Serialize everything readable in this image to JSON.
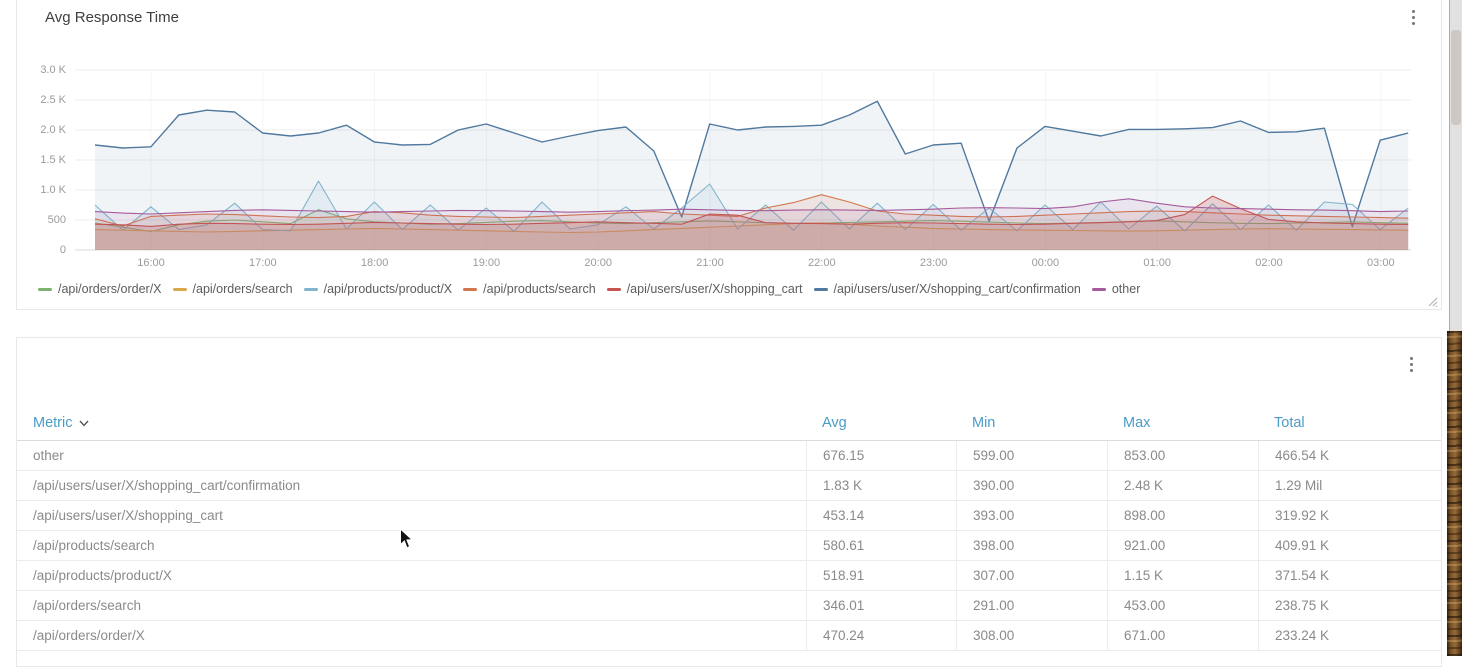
{
  "panels": {
    "chart_panel": {
      "title": "Avg Response Time"
    },
    "table_panel": {
      "title": ""
    }
  },
  "icons": [
    "kebab-menu-icon",
    "sort-chevron-icon",
    "resize-handle-icon",
    "mouse-cursor-icon"
  ],
  "colors": {
    "table_header": "#4a9bc6",
    "grid": "#ececec",
    "axis_text": "#9b9b9b"
  },
  "chart_data": {
    "type": "line",
    "title": "Avg Response Time",
    "x_start": "15:30",
    "x_step_minutes": 15,
    "x_tick_labels": [
      "16:00",
      "17:00",
      "18:00",
      "19:00",
      "20:00",
      "21:00",
      "22:00",
      "23:00",
      "00:00",
      "01:00",
      "02:00",
      "03:00"
    ],
    "ylim": [
      0,
      3000
    ],
    "y_tick_labels": [
      "0",
      "500",
      "1.0 K",
      "1.5 K",
      "2.0 K",
      "2.5 K",
      "3.0 K"
    ],
    "grid": true,
    "legend_position": "bottom",
    "draw_order": [
      5,
      0,
      1,
      2,
      3,
      4,
      6
    ],
    "series": [
      {
        "name": "/api/orders/order/X",
        "color": "#7eb26d",
        "fill_opacity": 0.1,
        "width": 1.1,
        "values": [
          450,
          380,
          308,
          420,
          480,
          500,
          470,
          440,
          671,
          520,
          470,
          450,
          430,
          440,
          460,
          480,
          490,
          470,
          450,
          440,
          455,
          470,
          485,
          470,
          455,
          445,
          450,
          460,
          470,
          480,
          490,
          480,
          465,
          450,
          440,
          450,
          460,
          475,
          485,
          470,
          455,
          445,
          440,
          450,
          460,
          470,
          455,
          445
        ]
      },
      {
        "name": "/api/orders/search",
        "color": "#d9a84e",
        "fill_opacity": 0.1,
        "width": 1.1,
        "values": [
          340,
          330,
          320,
          310,
          300,
          310,
          320,
          330,
          340,
          350,
          360,
          350,
          340,
          330,
          320,
          310,
          300,
          291,
          300,
          320,
          340,
          360,
          380,
          400,
          420,
          440,
          453,
          430,
          400,
          380,
          360,
          350,
          340,
          335,
          330,
          325,
          320,
          315,
          320,
          330,
          340,
          350,
          355,
          350,
          345,
          340,
          335,
          330
        ]
      },
      {
        "name": "/api/products/product/X",
        "color": "#82b5cb",
        "fill_opacity": 0.12,
        "width": 1.1,
        "values": [
          750,
          330,
          720,
          340,
          420,
          780,
          340,
          320,
          1150,
          350,
          800,
          340,
          750,
          330,
          700,
          310,
          800,
          350,
          420,
          720,
          350,
          700,
          1100,
          350,
          750,
          330,
          800,
          350,
          780,
          340,
          760,
          330,
          700,
          320,
          750,
          340,
          800,
          350,
          730,
          320,
          770,
          340,
          750,
          330,
          800,
          760,
          340,
          700
        ]
      },
      {
        "name": "/api/products/search",
        "color": "#d2764d",
        "fill_opacity": 0.12,
        "width": 1.1,
        "values": [
          520,
          400,
          560,
          580,
          600,
          590,
          570,
          550,
          540,
          560,
          640,
          620,
          580,
          560,
          550,
          540,
          560,
          580,
          600,
          620,
          640,
          600,
          580,
          560,
          700,
          790,
          921,
          800,
          650,
          600,
          580,
          560,
          550,
          560,
          580,
          600,
          620,
          640,
          650,
          640,
          620,
          600,
          580,
          570,
          560,
          550,
          540,
          530
        ]
      },
      {
        "name": "/api/users/user/X/shopping_cart",
        "color": "#c65450",
        "fill_opacity": 0.22,
        "width": 1.1,
        "values": [
          430,
          420,
          393,
          430,
          445,
          440,
          430,
          425,
          430,
          445,
          460,
          450,
          440,
          430,
          425,
          430,
          445,
          455,
          470,
          455,
          445,
          430,
          600,
          580,
          455,
          445,
          440,
          430,
          445,
          455,
          450,
          440,
          430,
          425,
          430,
          445,
          455,
          470,
          490,
          590,
          898,
          690,
          510,
          470,
          450,
          440,
          430,
          425
        ]
      },
      {
        "name": "/api/users/user/X/shopping_cart/confirmation",
        "color": "#50799f",
        "fill_opacity": 0.08,
        "width": 1.4,
        "values": [
          1750,
          1700,
          1720,
          2250,
          2330,
          2300,
          1950,
          1900,
          1950,
          2080,
          1800,
          1750,
          1760,
          2000,
          2100,
          1950,
          1800,
          1900,
          1990,
          2050,
          1650,
          550,
          2100,
          2000,
          2050,
          2060,
          2080,
          2250,
          2480,
          1600,
          1750,
          1780,
          480,
          1700,
          2060,
          1980,
          1900,
          2010,
          2010,
          2020,
          2040,
          2150,
          1960,
          1970,
          2030,
          390,
          1830,
          1950
        ]
      },
      {
        "name": "other",
        "color": "#a55b9b",
        "fill_opacity": 0.1,
        "width": 1.1,
        "values": [
          640,
          615,
          600,
          620,
          640,
          660,
          670,
          660,
          650,
          640,
          630,
          640,
          650,
          660,
          655,
          650,
          640,
          630,
          640,
          655,
          665,
          680,
          670,
          660,
          655,
          665,
          670,
          665,
          660,
          670,
          680,
          700,
          705,
          700,
          690,
          720,
          800,
          853,
          780,
          720,
          700,
          690,
          680,
          670,
          665,
          655,
          640,
          650
        ]
      }
    ]
  },
  "table": {
    "columns": [
      "Metric",
      "Avg",
      "Min",
      "Max",
      "Total"
    ],
    "sorted_by": "Metric",
    "rows": [
      [
        "other",
        "676.15",
        "599.00",
        "853.00",
        "466.54 K"
      ],
      [
        "/api/users/user/X/shopping_cart/confirmation",
        "1.83 K",
        "390.00",
        "2.48 K",
        "1.29 Mil"
      ],
      [
        "/api/users/user/X/shopping_cart",
        "453.14",
        "393.00",
        "898.00",
        "319.92 K"
      ],
      [
        "/api/products/search",
        "580.61",
        "398.00",
        "921.00",
        "409.91 K"
      ],
      [
        "/api/products/product/X",
        "518.91",
        "307.00",
        "1.15 K",
        "371.54 K"
      ],
      [
        "/api/orders/search",
        "346.01",
        "291.00",
        "453.00",
        "238.75 K"
      ],
      [
        "/api/orders/order/X",
        "470.24",
        "308.00",
        "671.00",
        "233.24 K"
      ]
    ]
  }
}
